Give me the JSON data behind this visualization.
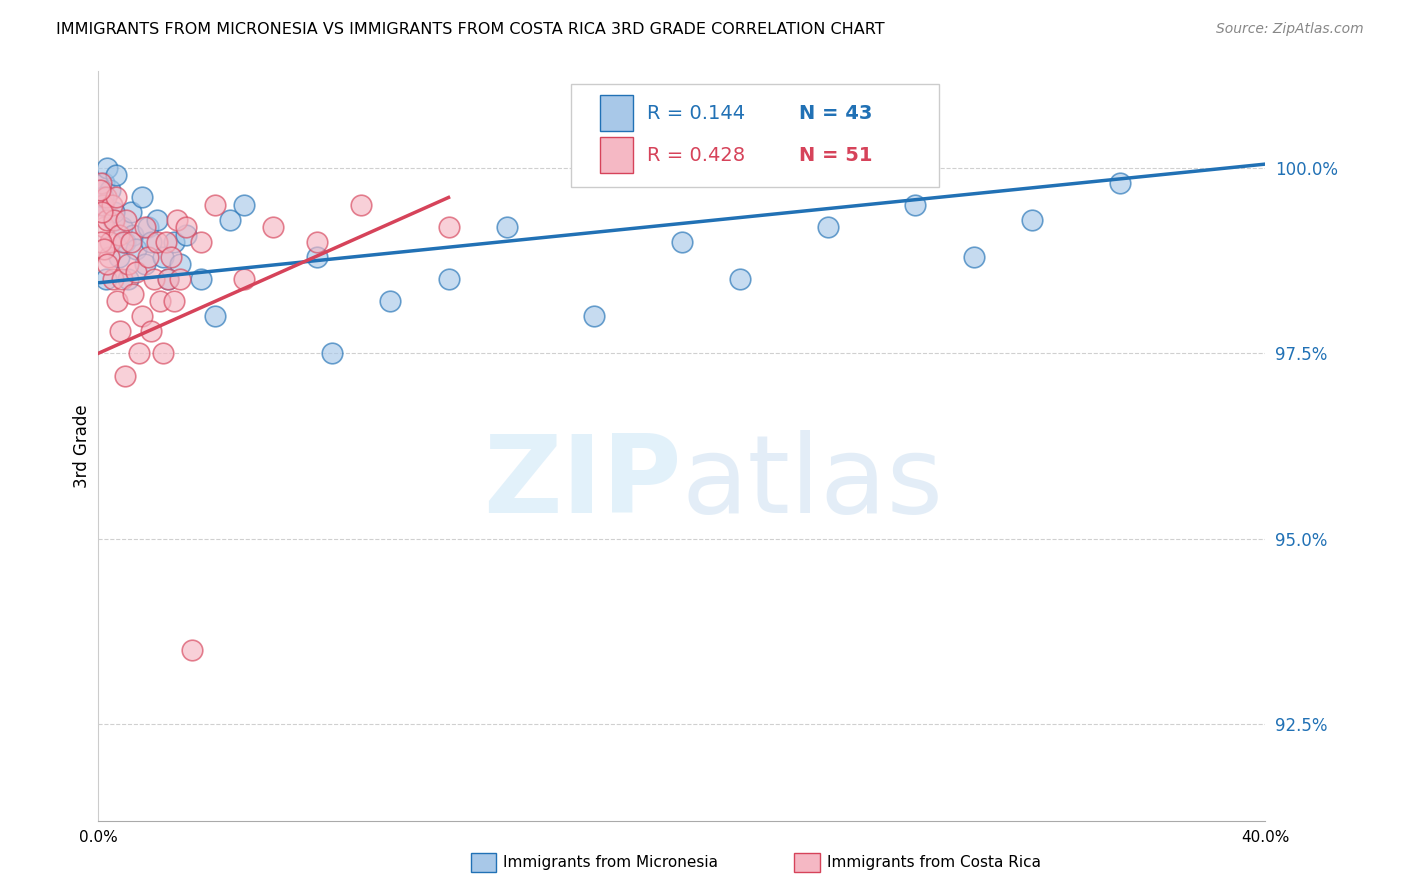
{
  "title": "IMMIGRANTS FROM MICRONESIA VS IMMIGRANTS FROM COSTA RICA 3RD GRADE CORRELATION CHART",
  "source": "Source: ZipAtlas.com",
  "ylabel": "3rd Grade",
  "ytick_labels": [
    "92.5%",
    "95.0%",
    "97.5%",
    "100.0%"
  ],
  "ytick_values": [
    92.5,
    95.0,
    97.5,
    100.0
  ],
  "xlim": [
    0.0,
    40.0
  ],
  "ylim": [
    91.2,
    101.3
  ],
  "legend_blue_r": "0.144",
  "legend_blue_n": "43",
  "legend_pink_r": "0.428",
  "legend_pink_n": "51",
  "color_blue": "#a8c8e8",
  "color_pink": "#f5b8c4",
  "color_blue_line": "#2171b5",
  "color_pink_line": "#d6435a",
  "micronesia_x": [
    0.1,
    0.2,
    0.3,
    0.4,
    0.5,
    0.6,
    0.7,
    0.8,
    0.9,
    1.0,
    1.1,
    1.2,
    1.3,
    1.5,
    1.6,
    1.7,
    1.8,
    2.0,
    2.2,
    2.4,
    2.6,
    2.8,
    3.0,
    3.5,
    4.0,
    4.5,
    5.0,
    7.5,
    8.0,
    10.0,
    12.0,
    14.0,
    17.0,
    20.0,
    22.0,
    25.0,
    28.0,
    30.0,
    32.0,
    35.0,
    0.15,
    0.25,
    0.55
  ],
  "micronesia_y": [
    99.5,
    99.8,
    100.0,
    99.7,
    99.3,
    99.9,
    98.8,
    99.2,
    99.0,
    98.5,
    99.4,
    99.1,
    98.9,
    99.6,
    98.7,
    99.2,
    99.0,
    99.3,
    98.8,
    98.5,
    99.0,
    98.7,
    99.1,
    98.5,
    98.0,
    99.3,
    99.5,
    98.8,
    97.5,
    98.2,
    98.5,
    99.2,
    98.0,
    99.0,
    98.5,
    99.2,
    99.5,
    98.8,
    99.3,
    99.8,
    99.6,
    98.5,
    99.4
  ],
  "costarica_x": [
    0.1,
    0.15,
    0.2,
    0.25,
    0.3,
    0.35,
    0.4,
    0.45,
    0.5,
    0.55,
    0.6,
    0.65,
    0.7,
    0.75,
    0.8,
    0.85,
    0.9,
    0.95,
    1.0,
    1.1,
    1.2,
    1.3,
    1.4,
    1.5,
    1.6,
    1.7,
    1.8,
    1.9,
    2.0,
    2.1,
    2.2,
    2.3,
    2.4,
    2.5,
    2.6,
    2.7,
    2.8,
    3.0,
    3.5,
    4.0,
    5.0,
    6.0,
    7.5,
    9.0,
    12.0,
    0.05,
    0.08,
    0.12,
    0.18,
    0.28,
    3.2
  ],
  "costarica_y": [
    99.8,
    99.5,
    99.2,
    99.6,
    99.3,
    98.8,
    99.0,
    99.5,
    98.5,
    99.3,
    99.6,
    98.2,
    99.1,
    97.8,
    98.5,
    99.0,
    97.2,
    99.3,
    98.7,
    99.0,
    98.3,
    98.6,
    97.5,
    98.0,
    99.2,
    98.8,
    97.8,
    98.5,
    99.0,
    98.2,
    97.5,
    99.0,
    98.5,
    98.8,
    98.2,
    99.3,
    98.5,
    99.2,
    99.0,
    99.5,
    98.5,
    99.2,
    99.0,
    99.5,
    99.2,
    99.7,
    99.0,
    99.4,
    98.9,
    98.7,
    93.5
  ],
  "blue_trendline_x": [
    0.0,
    40.0
  ],
  "blue_trendline_y": [
    98.45,
    100.05
  ],
  "pink_trendline_x": [
    0.0,
    12.0
  ],
  "pink_trendline_y": [
    97.5,
    99.6
  ]
}
